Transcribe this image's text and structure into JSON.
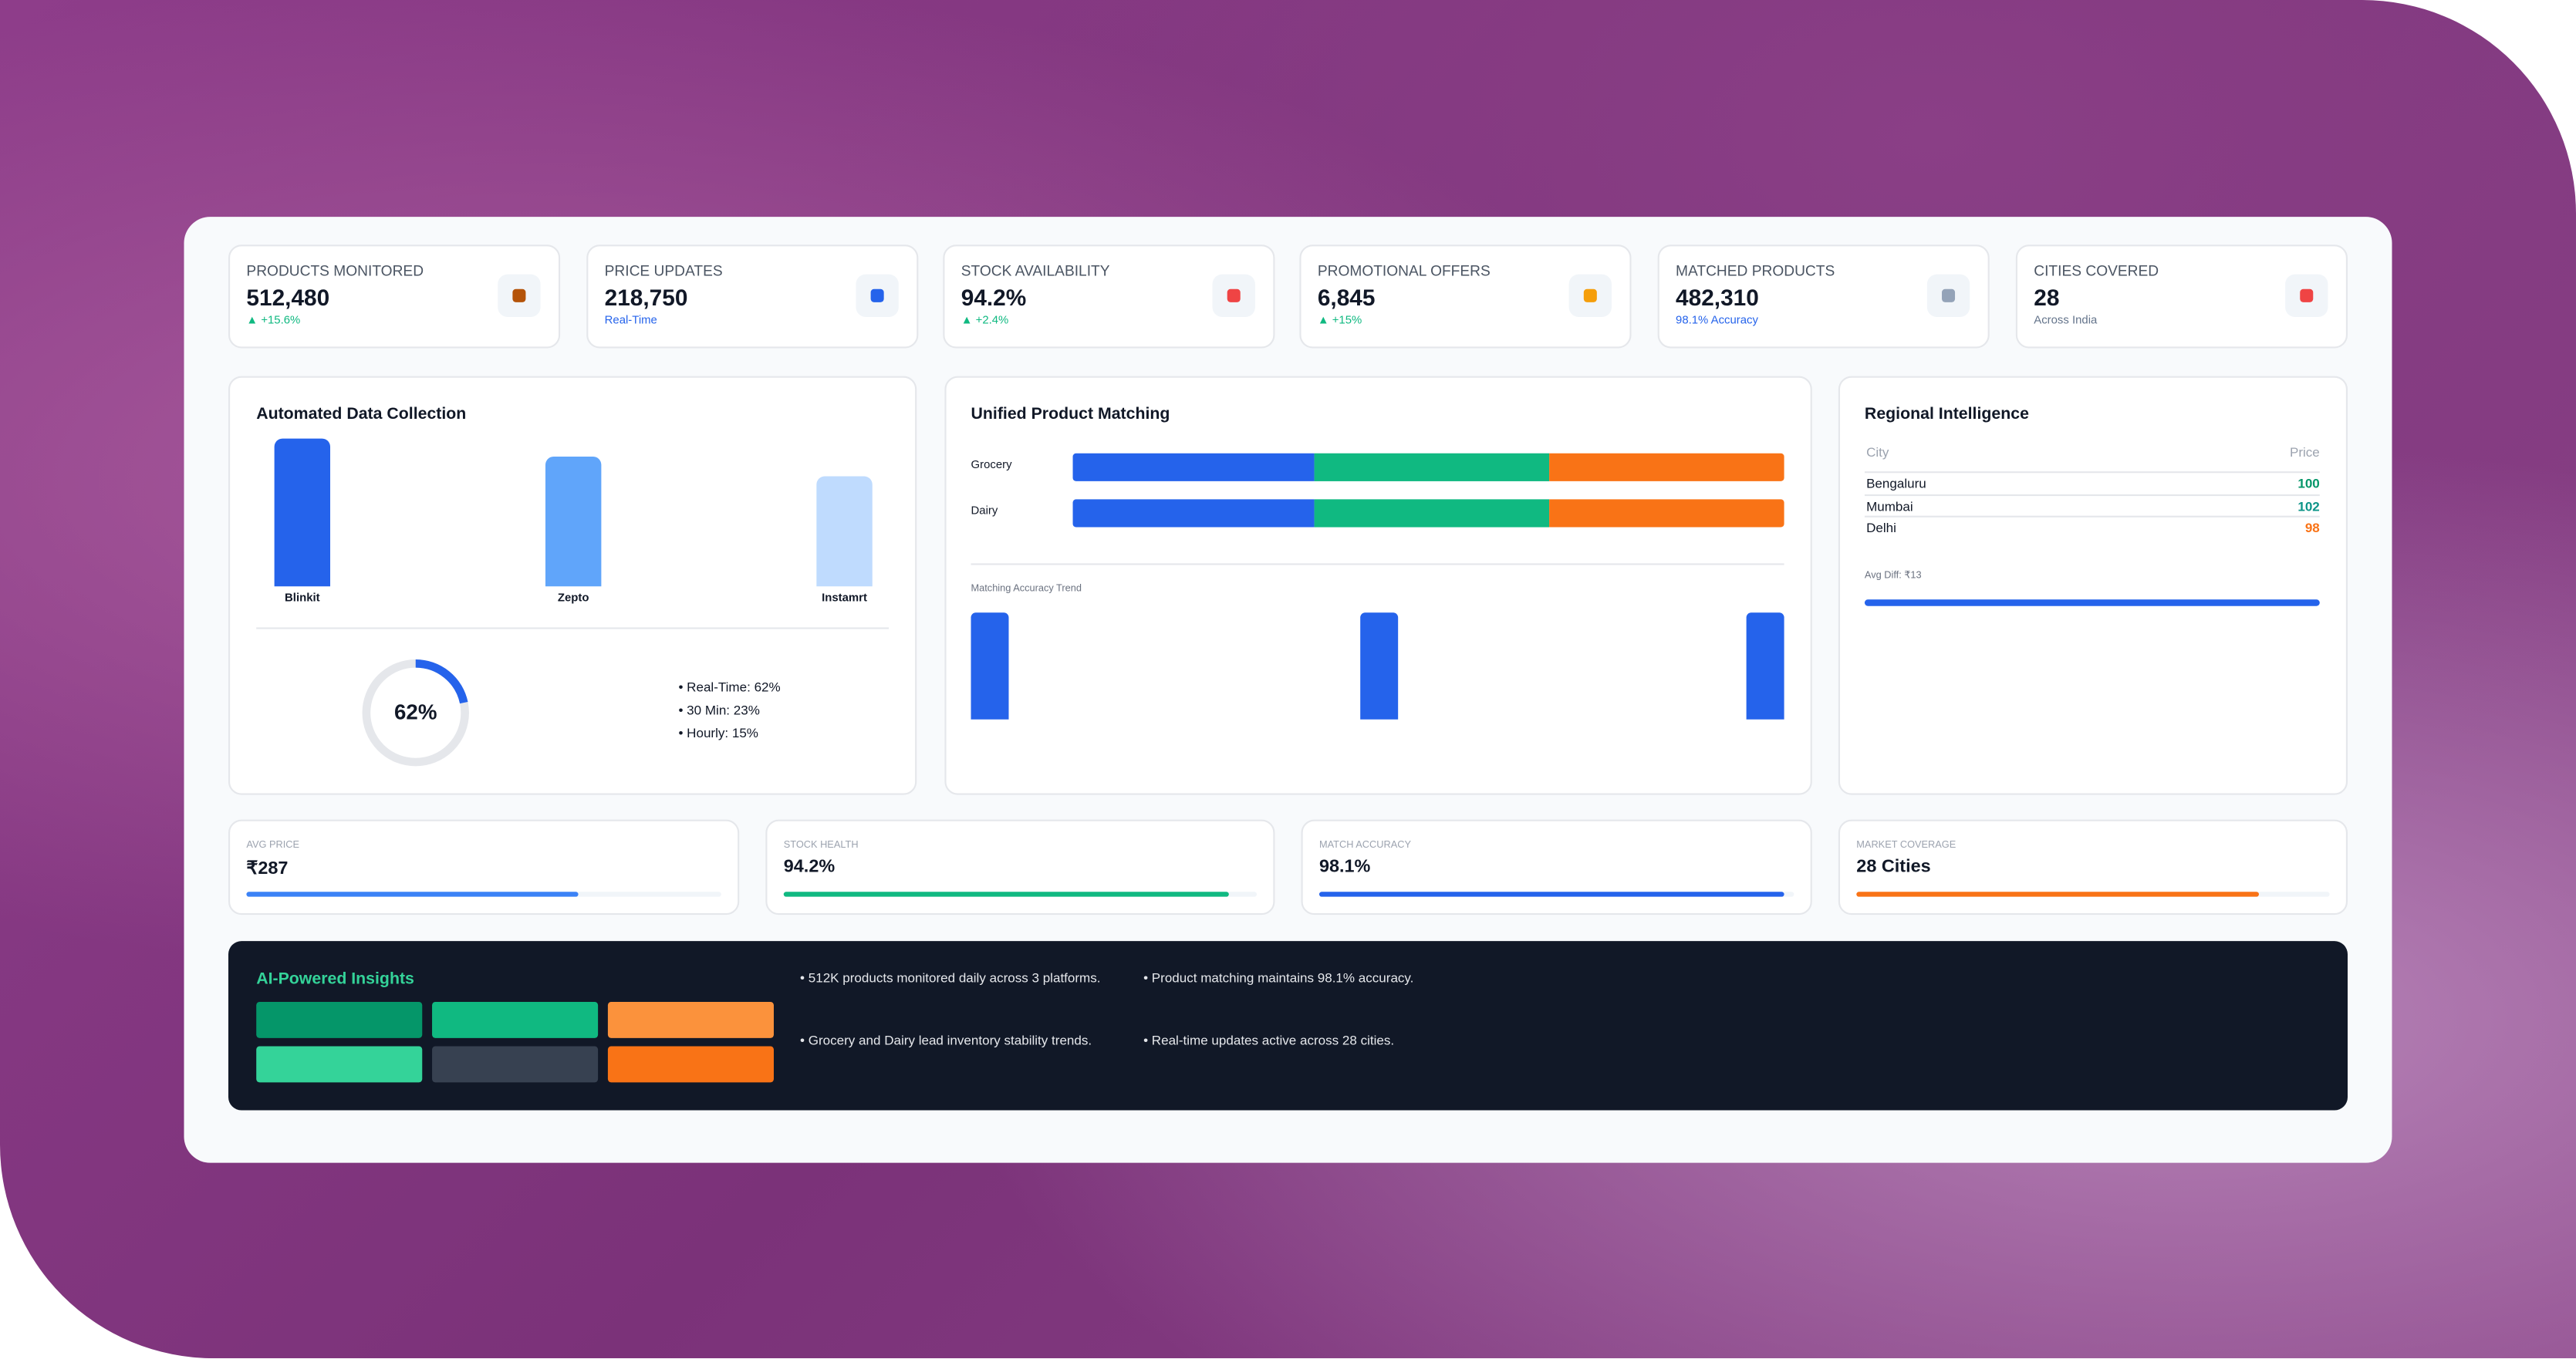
{
  "kpis": [
    {
      "label": "PRODUCTS MONITORED",
      "value": "512,480",
      "sub": "▲ +15.6%",
      "sub_color": "#10b981",
      "icon_color": "#b45309"
    },
    {
      "label": "PRICE UPDATES",
      "value": "218,750",
      "sub": "Real-Time",
      "sub_color": "#2563eb",
      "icon_color": "#2563eb"
    },
    {
      "label": "STOCK AVAILABILITY",
      "value": "94.2%",
      "sub": "▲ +2.4%",
      "sub_color": "#10b981",
      "icon_color": "#ef4444"
    },
    {
      "label": "PROMOTIONAL OFFERS",
      "value": "6,845",
      "sub": "▲ +15%",
      "sub_color": "#10b981",
      "icon_color": "#f59e0b"
    },
    {
      "label": "MATCHED PRODUCTS",
      "value": "482,310",
      "sub": "98.1% Accuracy",
      "sub_color": "#2563eb",
      "icon_color": "#94a3b8"
    },
    {
      "label": "CITIES COVERED",
      "value": "28",
      "sub": "Across India",
      "sub_color": "#64748b",
      "icon_color": "#ef4444"
    }
  ],
  "collection": {
    "title": "Automated Data Collection",
    "platforms": [
      "Blinkit",
      "Zepto",
      "Instamrt"
    ],
    "donut": {
      "value": 62,
      "label": "62%"
    },
    "legend": [
      "• Real-Time: 62%",
      "• 30 Min: 23%",
      "• Hourly: 15%"
    ]
  },
  "matching": {
    "title": "Unified Product Matching",
    "rows": [
      {
        "name": "Grocery",
        "segments": [
          34,
          33,
          33
        ]
      },
      {
        "name": "Dairy",
        "segments": [
          34,
          33,
          33
        ]
      }
    ],
    "colors": [
      "#2563eb",
      "#10b981",
      "#f97316"
    ],
    "trend_title": "Matching Accuracy Trend"
  },
  "regional": {
    "title": "Regional Intelligence",
    "headers": [
      "City",
      "Price"
    ],
    "rows": [
      {
        "city": "Bengaluru",
        "price": 100,
        "color": "#059669"
      },
      {
        "city": "Mumbai",
        "price": 102,
        "color": "#0d9488"
      },
      {
        "city": "Delhi",
        "price": 98,
        "color": "#f97316"
      }
    ],
    "avg": "Avg Diff: ₹13"
  },
  "metrics": [
    {
      "label": "AVG PRICE",
      "value": "₹287",
      "progress": 70,
      "color": "#3b82f6"
    },
    {
      "label": "STOCK HEALTH",
      "value": "94.2%",
      "progress": 94,
      "color": "#10b981"
    },
    {
      "label": "MATCH ACCURACY",
      "value": "98.1%",
      "progress": 98,
      "color": "#2563eb"
    },
    {
      "label": "MARKET COVERAGE",
      "value": "28 Cities",
      "progress": 85,
      "color": "#f97316"
    }
  ],
  "insights": {
    "title": "AI-Powered Insights",
    "items": [
      "• 512K products monitored daily across 3 platforms.",
      "• Product matching maintains 98.1% accuracy.",
      "• Grocery and Dairy lead inventory stability trends.",
      "• Real-time updates active across 28 cities."
    ]
  }
}
